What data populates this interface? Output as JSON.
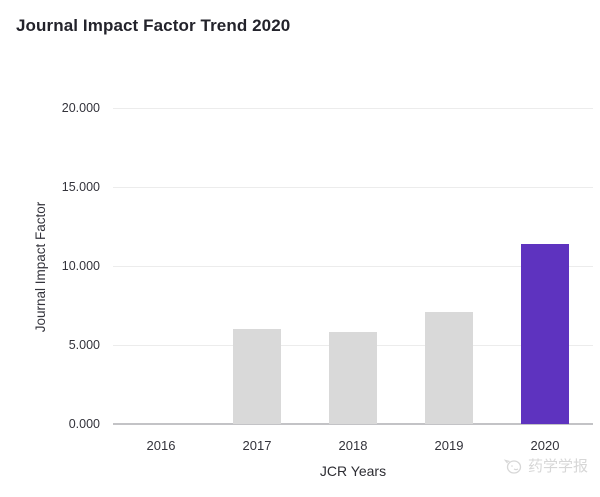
{
  "page": {
    "title": "Journal Impact Factor Trend 2020"
  },
  "watermark": {
    "icon": "journal-brand-logo-icon",
    "text": "药学学报"
  },
  "chart_data": {
    "type": "bar",
    "title": "Journal Impact Factor Trend 2020",
    "xlabel": "JCR Years",
    "ylabel": "Journal Impact Factor",
    "categories": [
      "2016",
      "2017",
      "2018",
      "2019",
      "2020"
    ],
    "series": [
      {
        "name": "Journal Impact Factor",
        "values": [
          null,
          6.0,
          5.8,
          7.1,
          11.4
        ]
      }
    ],
    "ylim": [
      0,
      20
    ],
    "ytick_values": [
      0,
      5,
      10,
      15,
      20
    ],
    "ytick_labels": [
      "0.000",
      "5.000",
      "10.000",
      "15.000",
      "20.000"
    ],
    "grid": true,
    "legend": false,
    "highlight_category": "2020",
    "colors": {
      "bar_default": "#d9d9d9",
      "bar_highlight": "#5e33bf",
      "gridline": "#ececec",
      "axis_line": "#c3c3c6",
      "text": "#33333b"
    }
  }
}
